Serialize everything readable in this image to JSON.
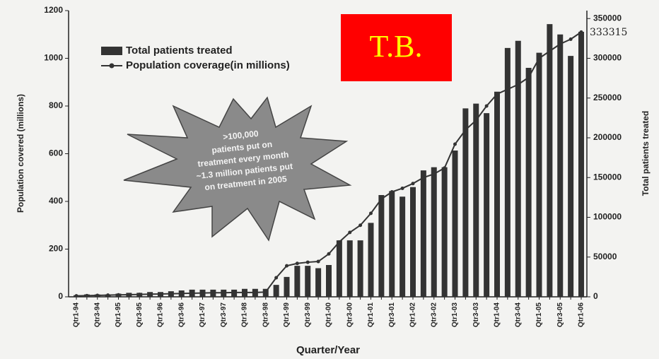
{
  "chart_data": {
    "type": "bar-line",
    "xlabel": "Quarter/Year",
    "ylabel": "Population covered (millions)",
    "y2label": "Total patients treated",
    "badge": "T.B.",
    "callout": [
      ">100,000",
      "patients put on",
      "treatment every month",
      "~1.3 million patients put",
      "on treatment in 2005"
    ],
    "categories": [
      "Qtr1-94",
      null,
      "Qtr3-94",
      null,
      "Qtr1-95",
      null,
      "Qtr3-95",
      null,
      "Qtr1-96",
      null,
      "Qtr3-96",
      null,
      "Qtr1-97",
      null,
      "Qtr3-97",
      null,
      "Qtr1-98",
      null,
      "Qtr3-98",
      null,
      "Qtr1-99",
      null,
      "Qtr3-99",
      null,
      "Qtr1-00",
      null,
      "Qtr3-00",
      null,
      "Qtr1-01",
      null,
      "Qtr3-01",
      null,
      "Qtr1-02",
      null,
      "Qtr3-02",
      null,
      "Qtr1-03",
      null,
      "Qtr3-03",
      null,
      "Qtr1-04",
      null,
      "Qtr3-04",
      null,
      "Qtr1-05",
      null,
      "Qtr3-05",
      null,
      "Qtr1-06"
    ],
    "series": [
      {
        "name": "Total patients treated",
        "color": "#333333",
        "axis": "y2",
        "values": [
          2000,
          3000,
          3000,
          3000,
          4000,
          5000,
          5000,
          6000,
          6000,
          7000,
          8000,
          9000,
          9000,
          9000,
          9000,
          9000,
          10000,
          10000,
          10000,
          15000,
          25000,
          39000,
          39000,
          36000,
          40000,
          71000,
          71000,
          71000,
          93000,
          128000,
          133000,
          126000,
          138000,
          159000,
          163000,
          163000,
          184000,
          237000,
          243000,
          231000,
          258000,
          313000,
          322000,
          288000,
          307000,
          343000,
          330000,
          303000,
          333315
        ]
      },
      {
        "name": "Population coverage(in millions)",
        "color": "#333333",
        "values": [
          4,
          5,
          6,
          7,
          8,
          9,
          10,
          11,
          12,
          13,
          14,
          15,
          16,
          17,
          17,
          18,
          18,
          18,
          20,
          80,
          130,
          140,
          145,
          148,
          180,
          230,
          270,
          300,
          350,
          410,
          440,
          455,
          475,
          500,
          515,
          540,
          640,
          700,
          740,
          800,
          850,
          870,
          890,
          920,
          1000,
          1030,
          1060,
          1080,
          1110
        ]
      }
    ],
    "ylim": [
      0,
      1200
    ],
    "yticks": [
      0,
      200,
      400,
      600,
      800,
      1000,
      1200
    ],
    "y2lim": [
      0,
      360000
    ],
    "y2ticks": [
      0,
      50000,
      100000,
      150000,
      200000,
      250000,
      300000,
      350000
    ],
    "legend": "upper-left"
  }
}
